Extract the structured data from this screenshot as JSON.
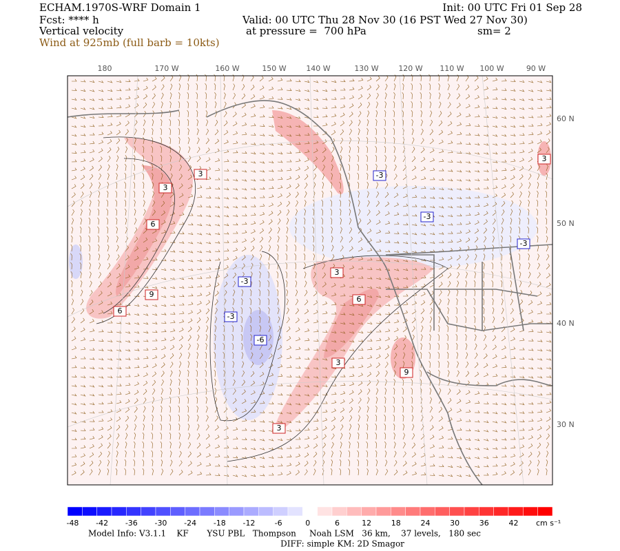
{
  "header": {
    "title": "ECHAM.1970S-WRF Domain 1",
    "init": "Init: 00 UTC Fri 01 Sep 28",
    "forecast": "Fcst: **** h",
    "valid": "Valid: 00 UTC Thu 28 Nov 30 (16 PST Wed 27 Nov 30)",
    "field": "Vertical velocity",
    "pressure": "at pressure =  700 hPa",
    "smoothing": "sm= 2",
    "wind": "Wind at 925mb (full barb = 10kts)"
  },
  "map": {
    "lon_labels": [
      "180",
      "170 W",
      "160 W",
      "150 W",
      "140 W",
      "130 W",
      "120 W",
      "110 W",
      "100 W",
      "90 W"
    ],
    "lat_labels": [
      "60 N",
      "50 N",
      "40 N",
      "30 N"
    ],
    "contour_labels": [
      "3",
      "3",
      "6",
      "9",
      "6",
      "-3",
      "-3",
      "-6",
      "3",
      "6",
      "3",
      "3",
      "9",
      "-3",
      "-3",
      "-3",
      "3"
    ]
  },
  "colorbar": {
    "labels": [
      -48,
      -42,
      -36,
      -30,
      -24,
      -18,
      -12,
      -6,
      0,
      6,
      12,
      18,
      24,
      30,
      36,
      42
    ],
    "unit": "cm s⁻¹",
    "low_color": "#0000ff",
    "mid_color": "#ffffff",
    "high_color": "#ff0000"
  },
  "footer": {
    "model_info": "Model Info: V3.1.1    KF       YSU PBL   Thompson     Noah LSM   36 km,    37 levels,   180 sec",
    "diff": "DIFF: simple KM: 2D Smagor"
  }
}
